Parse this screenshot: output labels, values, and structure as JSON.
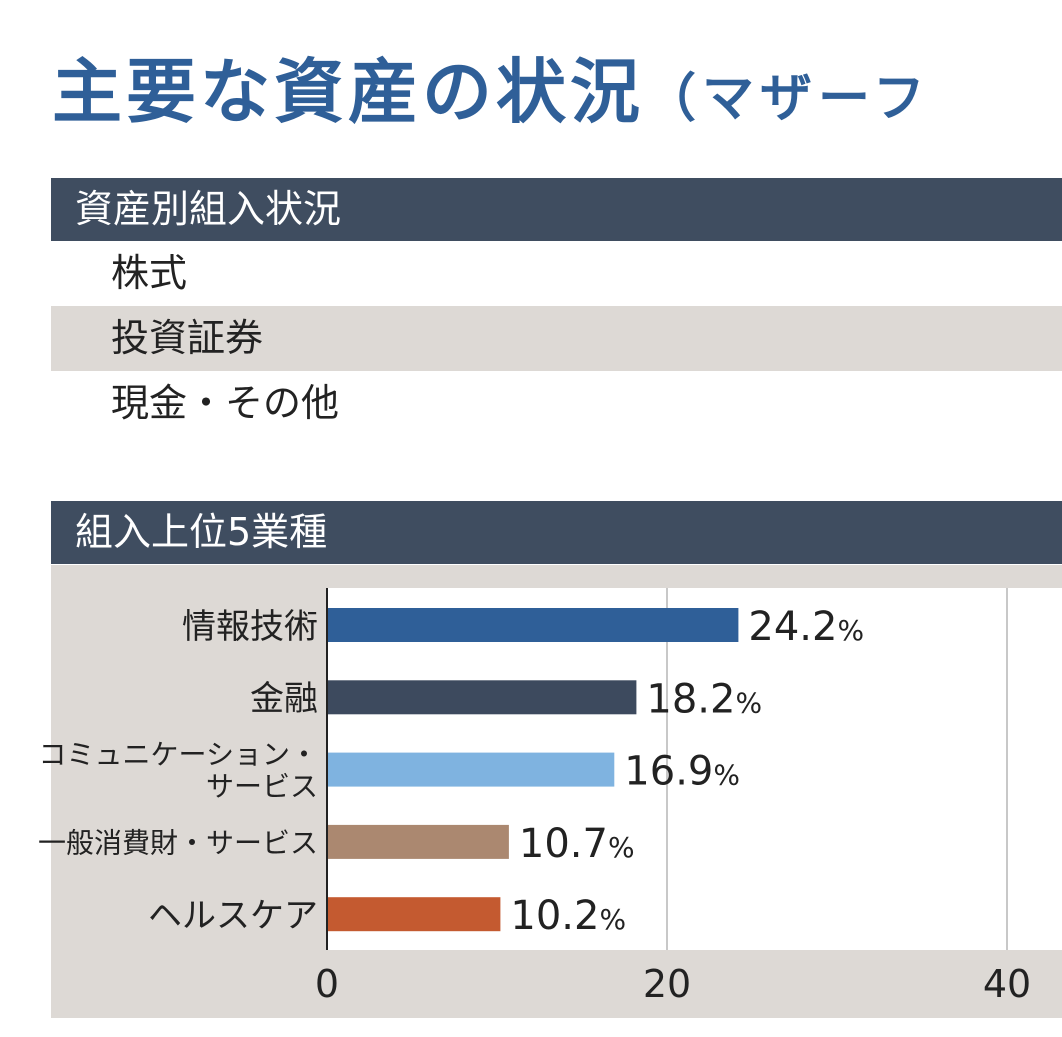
{
  "title": {
    "main": "主要な資産の状況",
    "sub": "（マザーフ"
  },
  "asset_section": {
    "header": "資産別組入状況",
    "rows": [
      "株式",
      "投資証券",
      "現金・その他"
    ]
  },
  "sector_section": {
    "header": "組入上位5業種"
  },
  "chart_data": {
    "type": "bar",
    "orientation": "horizontal",
    "categories": [
      "情報技術",
      "金融",
      "コミュニケーション・サービス",
      "一般消費財・サービス",
      "ヘルスケア"
    ],
    "category_label_lines": [
      [
        "情報技術"
      ],
      [
        "金融"
      ],
      [
        "コミュニケーション・",
        "サービス"
      ],
      [
        "一般消費財・サービス"
      ],
      [
        "ヘルスケア"
      ]
    ],
    "values": [
      24.2,
      18.2,
      16.9,
      10.7,
      10.2
    ],
    "data_labels": [
      "24.2",
      "18.2",
      "16.9",
      "10.7",
      "10.2"
    ],
    "unit": "%",
    "colors": [
      "#2f5f98",
      "#3d4a5e",
      "#7fb3e0",
      "#ab8870",
      "#c45a30"
    ],
    "xticks": [
      "0",
      "20",
      "40"
    ],
    "xtick_values": [
      0,
      20,
      40
    ],
    "xlim": [
      0,
      40
    ],
    "grid": true
  }
}
